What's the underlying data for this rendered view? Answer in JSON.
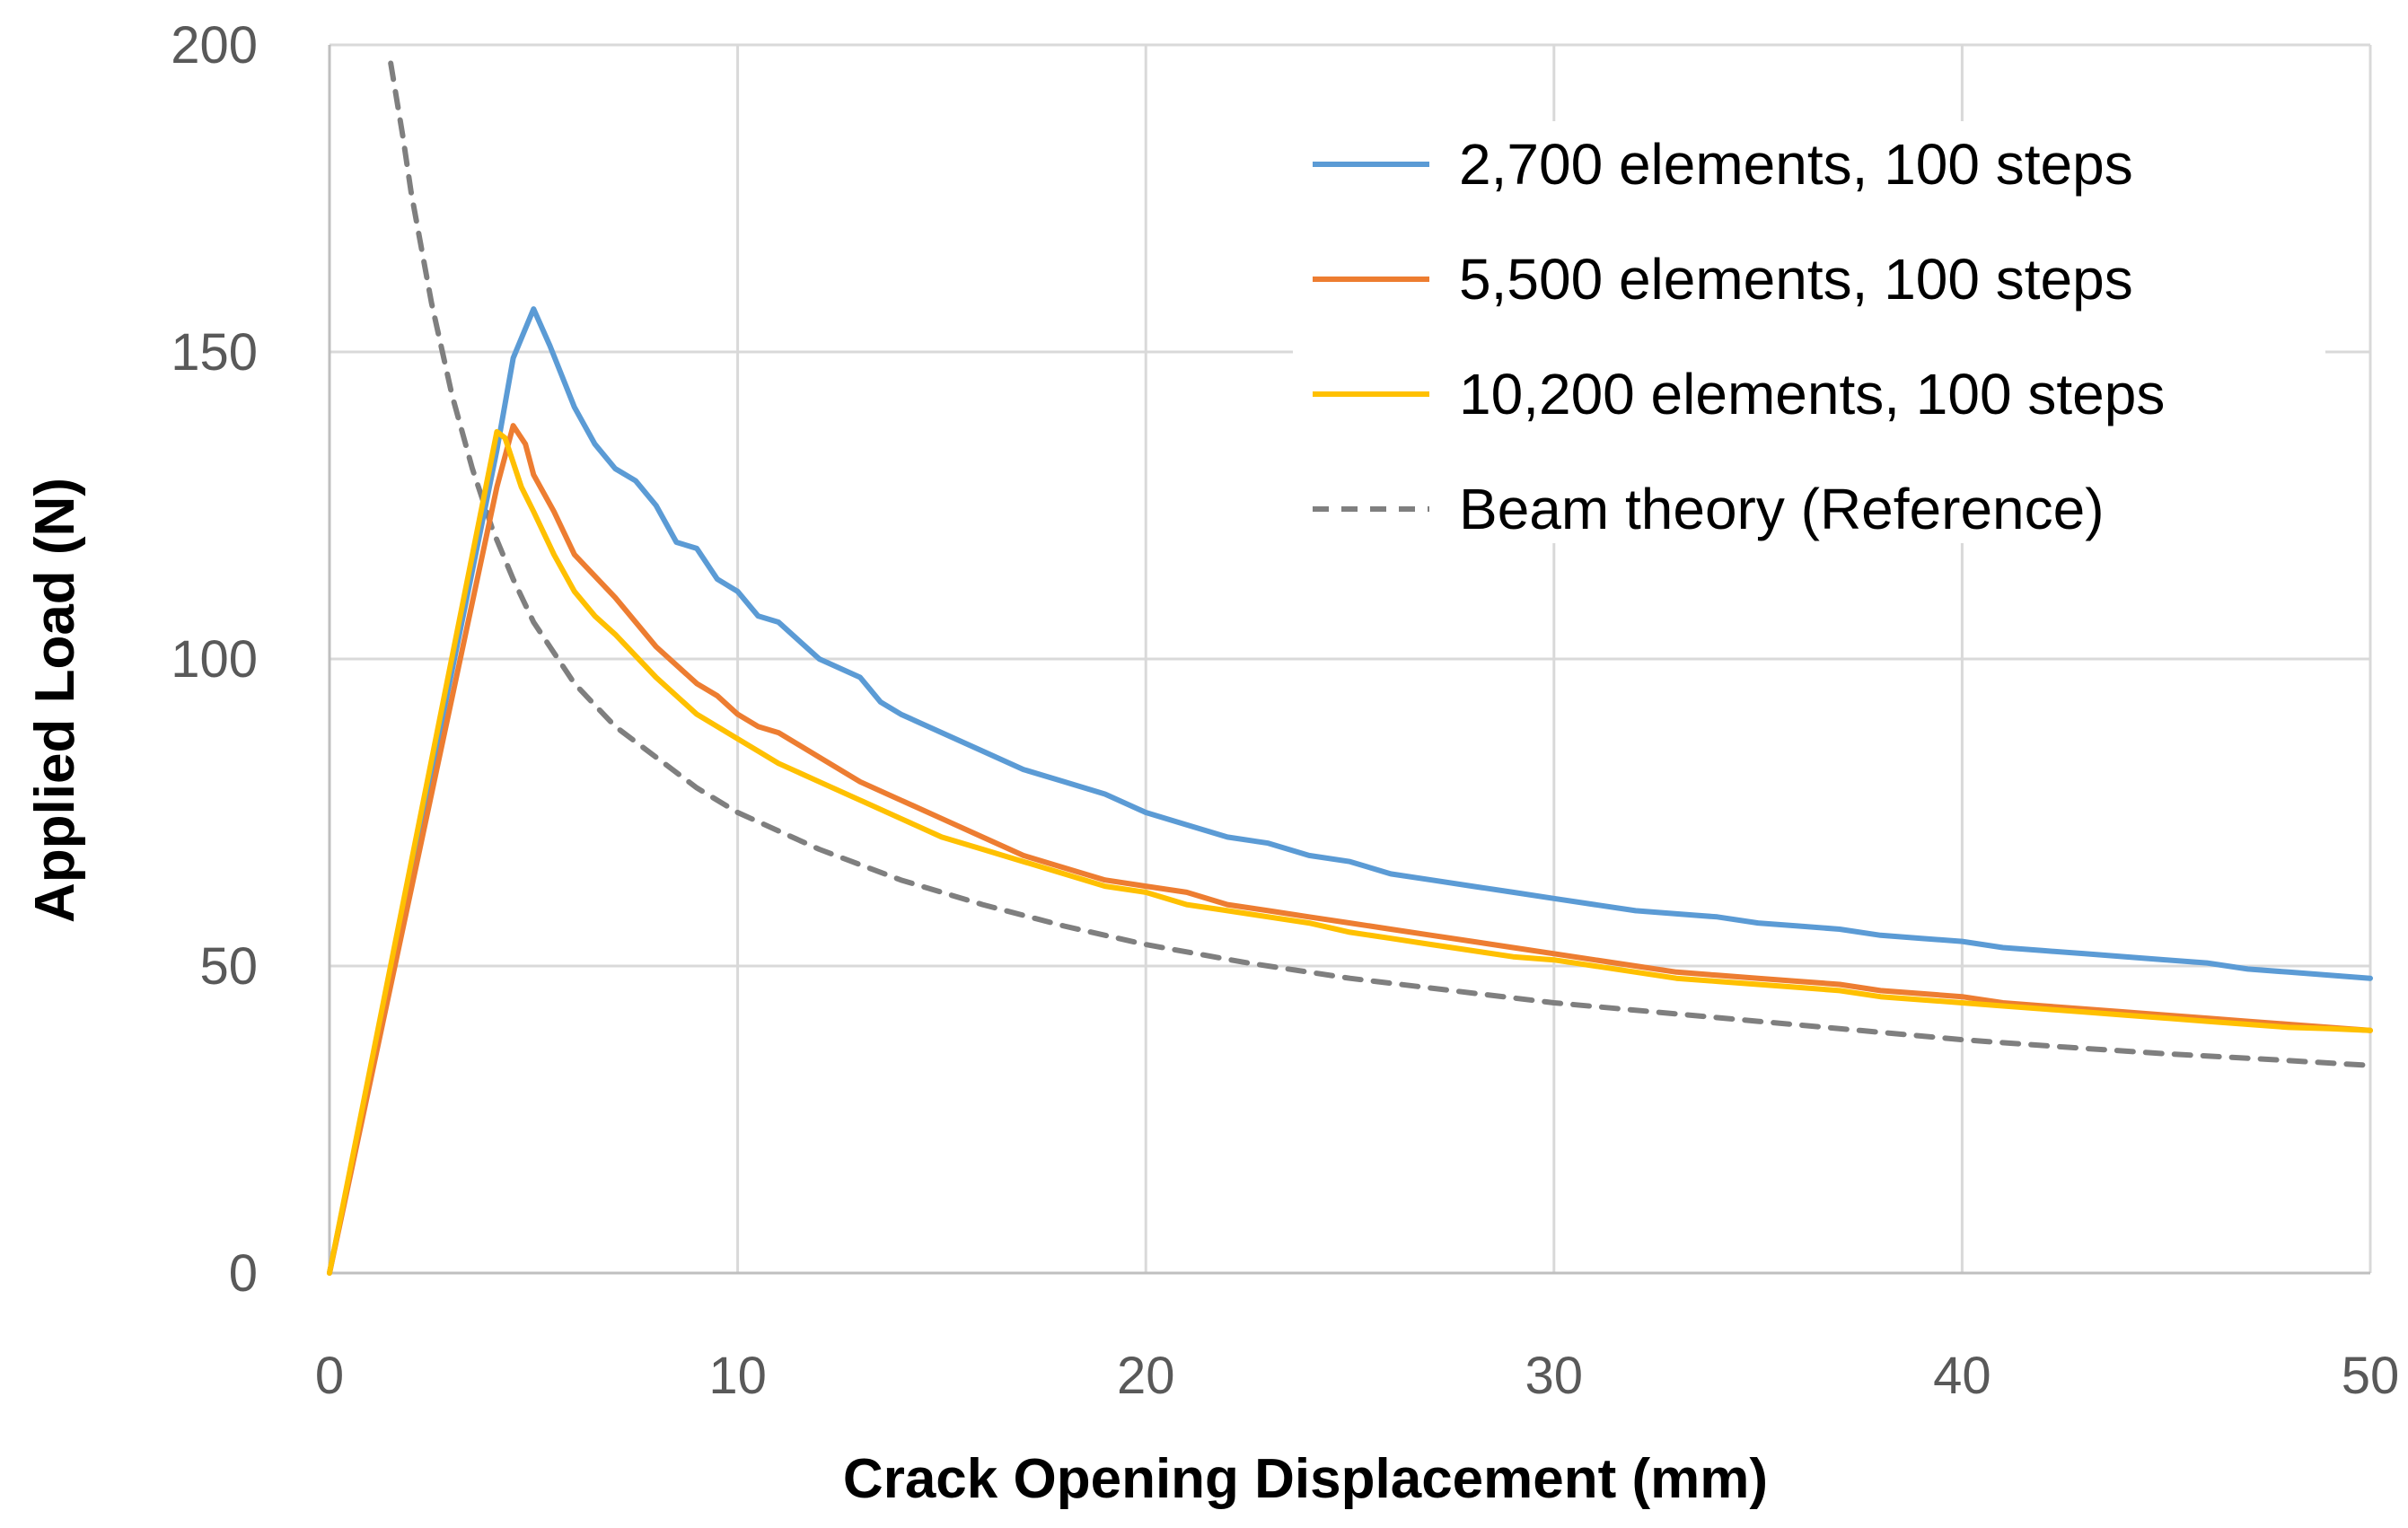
{
  "chart_data": {
    "type": "line",
    "title": "",
    "xlabel": "Crack Opening Displacement (mm)",
    "ylabel": "Applied Load (N)",
    "xlim": [
      0,
      50
    ],
    "ylim": [
      0,
      200
    ],
    "xticks": [
      "0",
      "10",
      "20",
      "30",
      "40",
      "50"
    ],
    "yticks": [
      "0",
      "50",
      "100",
      "150",
      "200"
    ],
    "grid": true,
    "legend_position": "top-right",
    "series": [
      {
        "name": "2,700 elements, 100 steps",
        "color": "#5b9bd5",
        "dash": "solid",
        "x": [
          0,
          4.1,
          4.5,
          5.0,
          5.4,
          6.0,
          6.5,
          7.0,
          7.5,
          8.0,
          8.5,
          9.0,
          9.5,
          10.0,
          10.5,
          11.0,
          12.0,
          13.0,
          13.5,
          14.0,
          15.0,
          16.0,
          17.0,
          18.0,
          19.0,
          20.0,
          21.0,
          22.0,
          23.0,
          24.0,
          25.0,
          26.0,
          27.0,
          28.0,
          29.0,
          30.0,
          31.0,
          32.0,
          33.0,
          34.0,
          35.0,
          36.0,
          37.0,
          38.0,
          39.0,
          40.0,
          41.0,
          42.0,
          43.0,
          44.0,
          45.0,
          46.0,
          47.0,
          48.0,
          49.0,
          50.0
        ],
        "y": [
          0,
          134,
          149,
          157,
          151,
          141,
          135,
          131,
          129,
          125,
          119,
          118,
          113,
          111,
          107,
          106,
          100,
          97,
          93,
          91,
          88,
          85,
          82,
          80,
          78,
          75,
          73,
          71,
          70,
          68,
          67,
          65,
          64,
          63,
          62,
          61,
          60,
          59,
          58.5,
          58,
          57,
          56.5,
          56,
          55,
          54.5,
          54,
          53,
          52.5,
          52,
          51.5,
          51,
          50.5,
          49.5,
          49,
          48.5,
          48
        ]
      },
      {
        "name": "5,500 elements, 100 steps",
        "color": "#ed7d31",
        "dash": "solid",
        "x": [
          0,
          4.1,
          4.5,
          4.8,
          5.0,
          5.5,
          6.0,
          7.0,
          8.0,
          9.0,
          9.5,
          10.0,
          10.5,
          11.0,
          12.0,
          13.0,
          14.0,
          15.0,
          16.0,
          17.0,
          18.0,
          19.0,
          20.0,
          21.0,
          22.0,
          23.0,
          24.0,
          25.0,
          26.0,
          27.0,
          28.0,
          29.0,
          30.0,
          31.0,
          32.0,
          33.0,
          34.0,
          35.0,
          36.0,
          37.0,
          38.0,
          39.0,
          40.0,
          41.0,
          42.0,
          43.0,
          44.0,
          45.0,
          46.0,
          47.0,
          48.0,
          49.0,
          50.0
        ],
        "y": [
          0,
          128,
          138,
          135,
          130,
          124,
          117,
          110,
          102,
          96,
          94,
          91,
          89,
          88,
          84,
          80,
          77,
          74,
          71,
          68,
          66,
          64,
          63,
          62,
          60,
          59,
          58,
          57,
          56,
          55,
          54,
          53,
          52,
          51,
          50,
          49,
          48.5,
          48,
          47.5,
          47,
          46,
          45.5,
          45,
          44,
          43.5,
          43,
          42.5,
          42,
          41.5,
          41,
          40.5,
          40,
          39.5
        ]
      },
      {
        "name": "10,200 elements, 100 steps",
        "color": "#ffc000",
        "dash": "solid",
        "x": [
          0,
          4.1,
          4.3,
          4.7,
          5.0,
          5.5,
          6.0,
          6.5,
          7.0,
          8.0,
          9.0,
          10.0,
          10.5,
          11.0,
          12.0,
          13.0,
          14.0,
          15.0,
          16.0,
          17.0,
          18.0,
          19.0,
          20.0,
          21.0,
          22.0,
          23.0,
          24.0,
          25.0,
          26.0,
          27.0,
          28.0,
          29.0,
          30.0,
          31.0,
          32.0,
          33.0,
          34.0,
          35.0,
          36.0,
          37.0,
          38.0,
          39.0,
          40.0,
          41.0,
          42.0,
          43.0,
          44.0,
          45.0,
          46.0,
          47.0,
          48.0,
          49.0,
          50.0
        ],
        "y": [
          0,
          137,
          136,
          128,
          124,
          117,
          111,
          107,
          104,
          97,
          91,
          87,
          85,
          83,
          80,
          77,
          74,
          71,
          69,
          67,
          65,
          63,
          62,
          60,
          59,
          58,
          57,
          55.5,
          54.5,
          53.5,
          52.5,
          51.5,
          51,
          50,
          49,
          48,
          47.5,
          47,
          46.5,
          46,
          45,
          44.5,
          44,
          43.5,
          43,
          42.5,
          42,
          41.5,
          41,
          40.5,
          40,
          39.8,
          39.5
        ]
      },
      {
        "name": "Beam theory (Reference)",
        "color": "#7f7f7f",
        "dash": "dashed",
        "x": [
          1.5,
          1.8,
          2.0,
          2.5,
          3.0,
          3.5,
          4.0,
          4.5,
          5.0,
          6.0,
          7.0,
          8.0,
          9.0,
          10.0,
          12.0,
          14.0,
          16.0,
          18.0,
          20.0,
          22.5,
          25.0,
          27.5,
          30.0,
          32.5,
          35.0,
          37.5,
          40.0,
          42.5,
          45.0,
          47.5,
          50.0
        ],
        "y": [
          197,
          185,
          176,
          158,
          143,
          131,
          121,
          113,
          106,
          96,
          89,
          84,
          79,
          75,
          69,
          64,
          60,
          56.5,
          53.5,
          50.5,
          48,
          46,
          44,
          42.5,
          41,
          39.5,
          38,
          36.8,
          35.7,
          34.8,
          33.8
        ]
      }
    ]
  }
}
